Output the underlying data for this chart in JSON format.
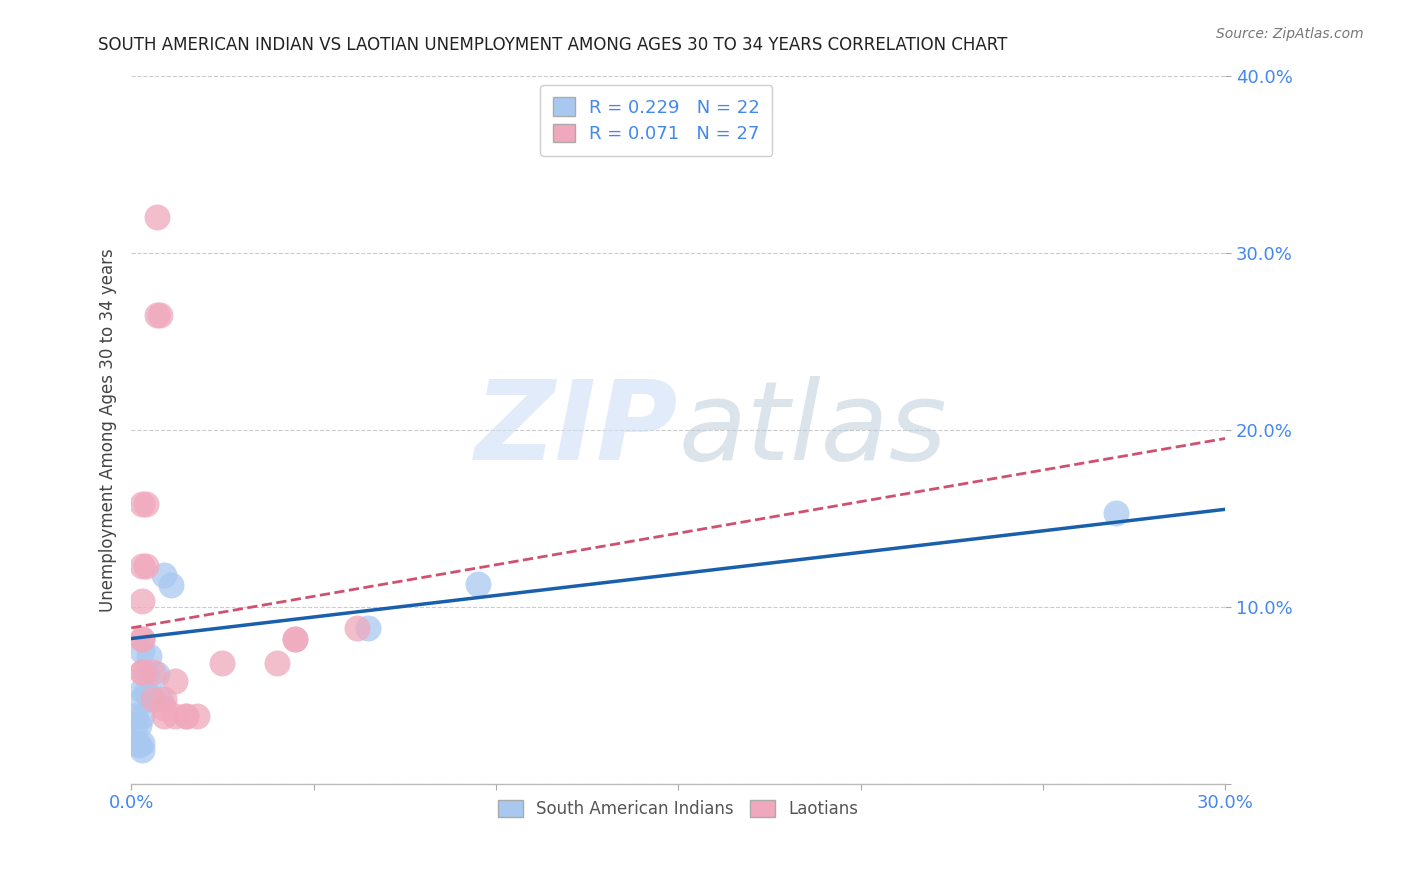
{
  "title": "SOUTH AMERICAN INDIAN VS LAOTIAN UNEMPLOYMENT AMONG AGES 30 TO 34 YEARS CORRELATION CHART",
  "source": "Source: ZipAtlas.com",
  "ylabel": "Unemployment Among Ages 30 to 34 years",
  "xlim": [
    0.0,
    0.3
  ],
  "ylim": [
    0.0,
    0.4
  ],
  "xticks": [
    0.0,
    0.05,
    0.1,
    0.15,
    0.2,
    0.25,
    0.3
  ],
  "yticks": [
    0.0,
    0.1,
    0.2,
    0.3,
    0.4
  ],
  "blue_color": "#a8c8f0",
  "pink_color": "#f0a8bc",
  "blue_line_color": "#1a5fac",
  "pink_line_color": "#d05070",
  "title_color": "#222222",
  "axis_label_color": "#444444",
  "tick_color": "#4488ee",
  "watermark_color": "#d0dff5",
  "legend_label_blue": "South American Indians",
  "legend_label_pink": "Laotians",
  "blue_points_x": [
    0.003,
    0.005,
    0.004,
    0.007,
    0.009,
    0.003,
    0.004,
    0.003,
    0.005,
    0.008,
    0.011,
    0.003,
    0.002,
    0.001,
    0.001,
    0.003,
    0.003,
    0.001,
    0.002,
    0.065,
    0.095,
    0.27
  ],
  "blue_points_y": [
    0.075,
    0.072,
    0.062,
    0.062,
    0.118,
    0.053,
    0.052,
    0.048,
    0.048,
    0.048,
    0.112,
    0.038,
    0.033,
    0.038,
    0.033,
    0.023,
    0.019,
    0.023,
    0.022,
    0.088,
    0.113,
    0.153
  ],
  "pink_points_x": [
    0.007,
    0.007,
    0.008,
    0.003,
    0.004,
    0.003,
    0.004,
    0.003,
    0.003,
    0.003,
    0.003,
    0.003,
    0.006,
    0.006,
    0.009,
    0.009,
    0.009,
    0.012,
    0.012,
    0.015,
    0.015,
    0.018,
    0.025,
    0.04,
    0.045,
    0.045,
    0.062
  ],
  "pink_points_y": [
    0.32,
    0.265,
    0.265,
    0.158,
    0.158,
    0.123,
    0.123,
    0.103,
    0.082,
    0.082,
    0.063,
    0.063,
    0.063,
    0.048,
    0.048,
    0.043,
    0.038,
    0.058,
    0.038,
    0.038,
    0.038,
    0.038,
    0.068,
    0.068,
    0.082,
    0.082,
    0.088
  ],
  "blue_trend_x": [
    0.0,
    0.3
  ],
  "blue_trend_y": [
    0.082,
    0.155
  ],
  "pink_trend_x": [
    0.0,
    0.3
  ],
  "pink_trend_y": [
    0.088,
    0.195
  ],
  "background_color": "#ffffff",
  "grid_color": "#cccccc"
}
